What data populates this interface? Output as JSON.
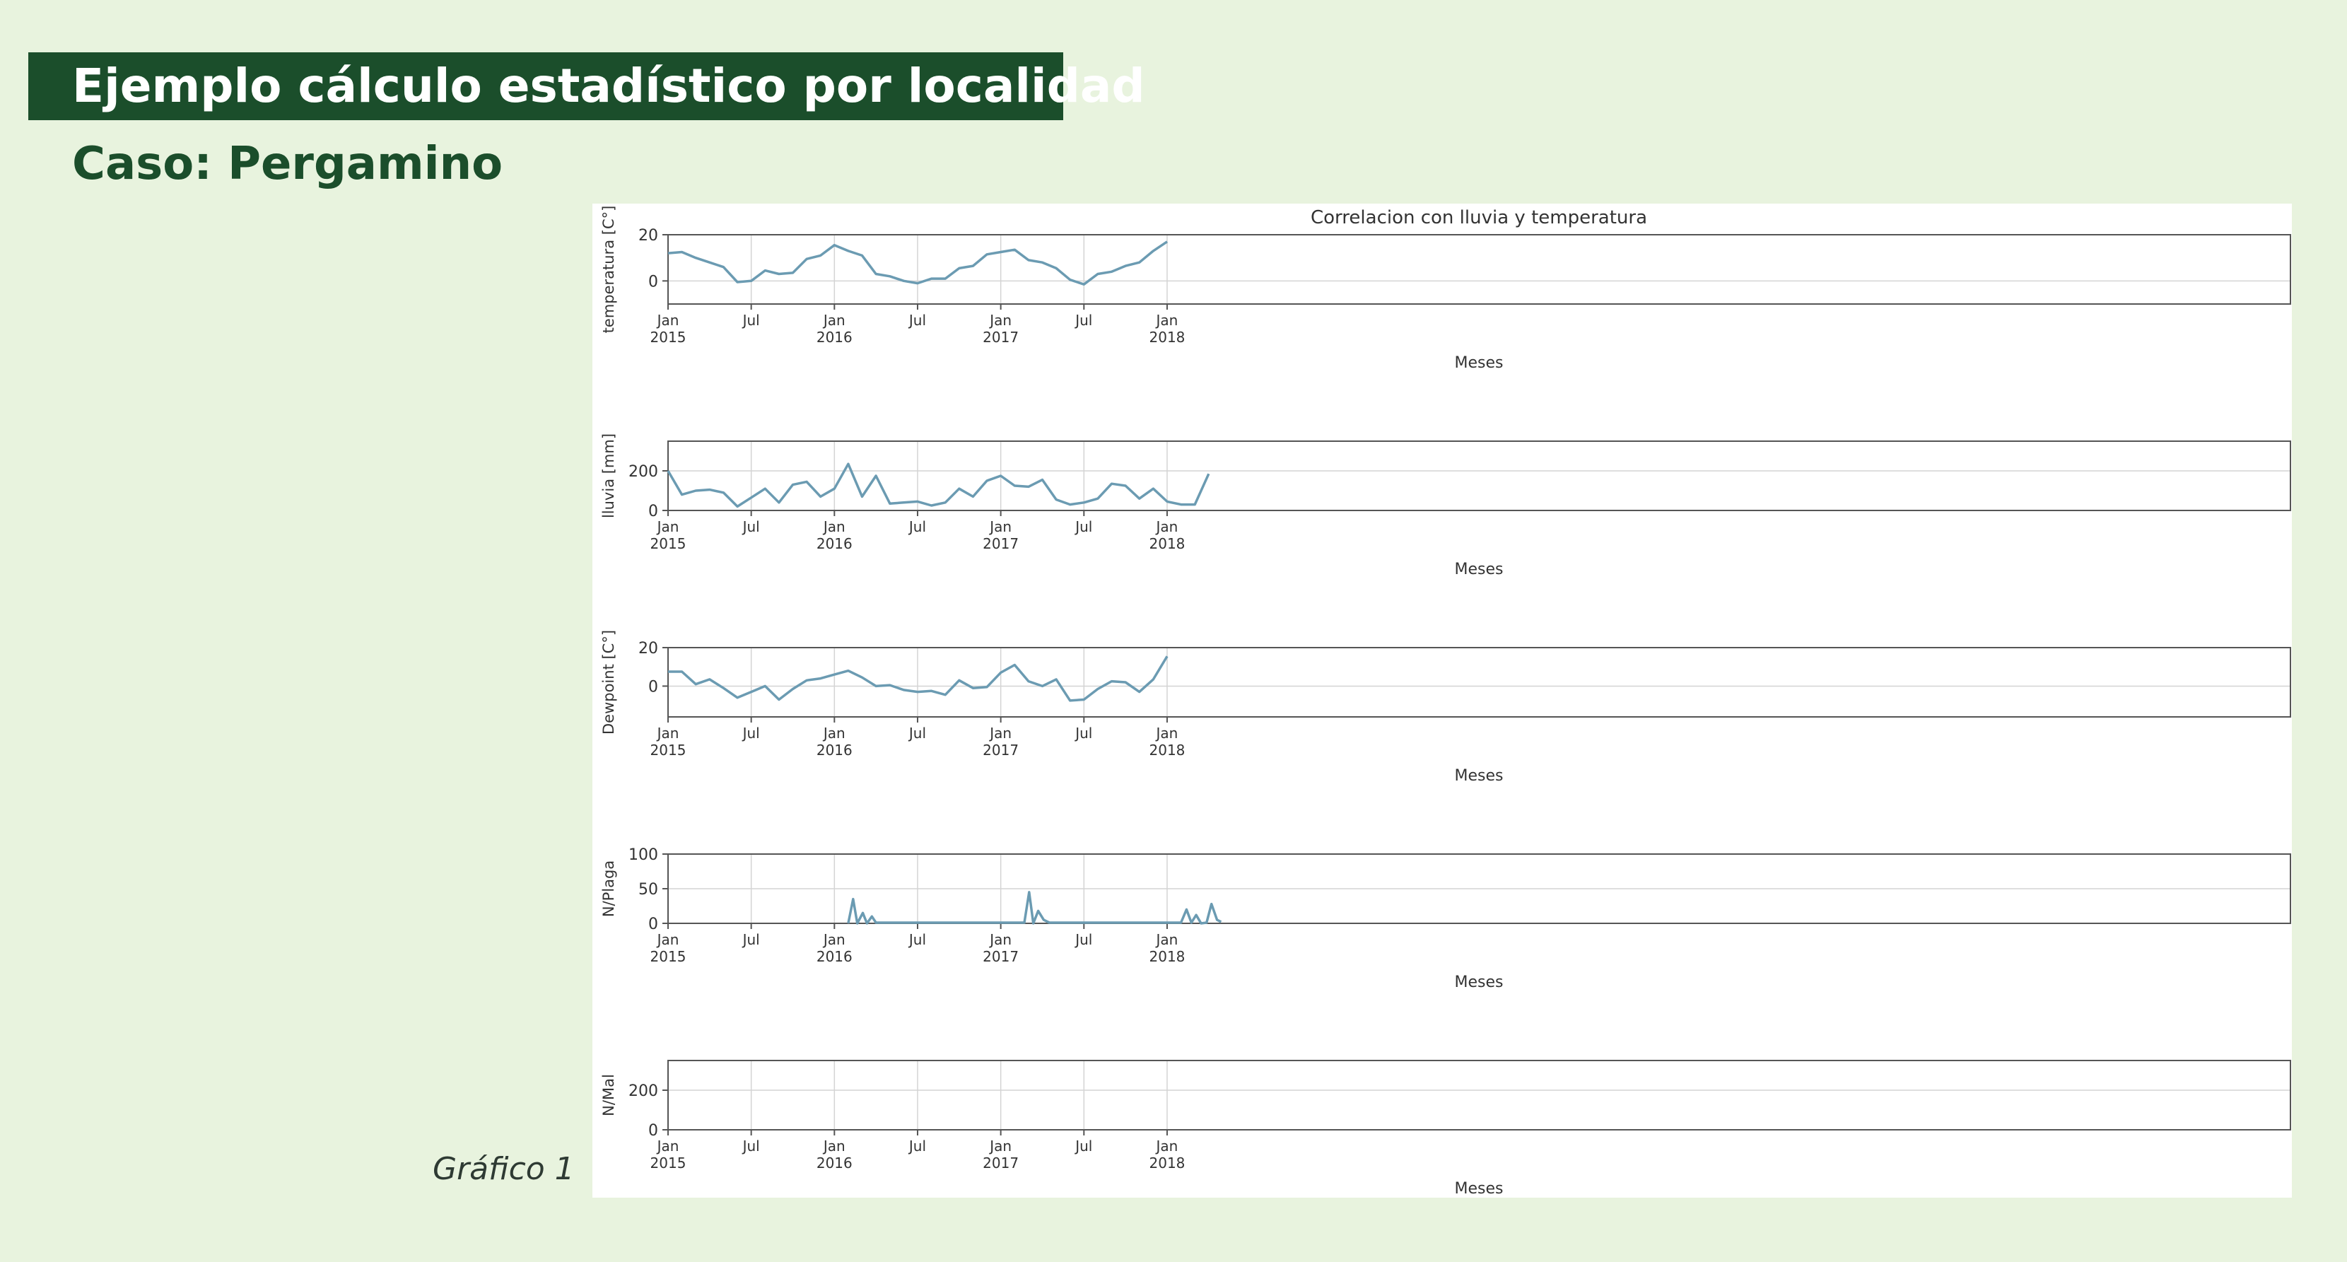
{
  "header": {
    "title": "Ejemplo cálculo estadístico por localidad",
    "subtitle": "Caso: Pergamino"
  },
  "caption": "Gráfico 1",
  "colors": {
    "background": "#e8f3de",
    "banner": "#1b4e2b",
    "line": "#6b9bb2"
  },
  "chart_data": {
    "type": "line",
    "title": "Correlacion con lluvia y temperatura",
    "xlabel": "Meses",
    "x_tick_labels": [
      {
        "label": "Jan",
        "sub": "2015",
        "month": 0
      },
      {
        "label": "Jul",
        "sub": "",
        "month": 6
      },
      {
        "label": "Jan",
        "sub": "2016",
        "month": 12
      },
      {
        "label": "Jul",
        "sub": "",
        "month": 18
      },
      {
        "label": "Jan",
        "sub": "2017",
        "month": 24
      },
      {
        "label": "Jul",
        "sub": "",
        "month": 30
      },
      {
        "label": "Jan",
        "sub": "2018",
        "month": 36
      }
    ],
    "grid": true,
    "subplots": [
      {
        "ylabel": "temperatura [C°]",
        "ylim": [
          -10,
          20
        ],
        "yticks": [
          0,
          20
        ],
        "start": "2015-01",
        "values": [
          12,
          12.5,
          10,
          8,
          6,
          -0.5,
          0,
          4.5,
          3,
          3.5,
          9.5,
          11,
          15.5,
          13,
          11,
          3,
          2,
          0,
          -1,
          1,
          1,
          5.5,
          6.5,
          11.5,
          12.5,
          13.5,
          9,
          8,
          5.5,
          0.5,
          -1.5,
          3,
          4,
          6.5,
          8,
          13,
          17
        ]
      },
      {
        "ylabel": "lluvia [mm]",
        "ylim": [
          0,
          350
        ],
        "yticks": [
          0,
          200
        ],
        "start": "2015-01",
        "values": [
          200,
          80,
          100,
          105,
          90,
          20,
          65,
          110,
          40,
          130,
          145,
          70,
          110,
          235,
          70,
          175,
          35,
          40,
          45,
          25,
          40,
          110,
          70,
          150,
          175,
          125,
          120,
          155,
          55,
          30,
          40,
          60,
          135,
          125,
          60,
          110,
          45,
          30,
          30,
          185
        ]
      },
      {
        "ylabel": "Dewpoint [C°]",
        "ylim": [
          -16,
          20
        ],
        "yticks": [
          0,
          20
        ],
        "start": "2015-01",
        "values": [
          7.5,
          7.5,
          1,
          3.5,
          -1,
          -6,
          -3,
          0,
          -7,
          -1.5,
          3,
          4,
          6,
          8,
          4.5,
          0,
          0.5,
          -2,
          -3,
          -2.5,
          -4.5,
          3,
          -1,
          -0.5,
          7,
          11,
          2.5,
          0,
          3.5,
          -7.5,
          -7,
          -1.5,
          2.5,
          2,
          -3,
          3.5,
          15.5
        ]
      },
      {
        "ylabel": "N/Plaga",
        "ylim": [
          0,
          100
        ],
        "yticks": [
          0,
          50,
          100
        ],
        "start": "2016-02",
        "series_note": "",
        "points": [
          [
            13.0,
            0
          ],
          [
            13.35,
            35
          ],
          [
            13.65,
            0
          ],
          [
            14.05,
            15
          ],
          [
            14.35,
            0
          ],
          [
            14.7,
            10
          ],
          [
            15.0,
            1
          ],
          [
            25.0,
            1
          ],
          [
            25.7,
            1
          ],
          [
            26.05,
            45
          ],
          [
            26.35,
            0
          ],
          [
            26.7,
            18
          ],
          [
            27.1,
            5
          ],
          [
            27.5,
            1
          ],
          [
            37.0,
            1
          ],
          [
            37.4,
            20
          ],
          [
            37.75,
            1
          ],
          [
            38.1,
            12
          ],
          [
            38.45,
            0
          ],
          [
            38.85,
            1
          ],
          [
            39.2,
            28
          ],
          [
            39.6,
            5
          ],
          [
            39.9,
            2
          ]
        ]
      },
      {
        "ylabel": "N/Mal",
        "ylim": [
          0,
          350
        ],
        "yticks": [
          0,
          200
        ],
        "start": "2015-01",
        "points": []
      }
    ]
  }
}
